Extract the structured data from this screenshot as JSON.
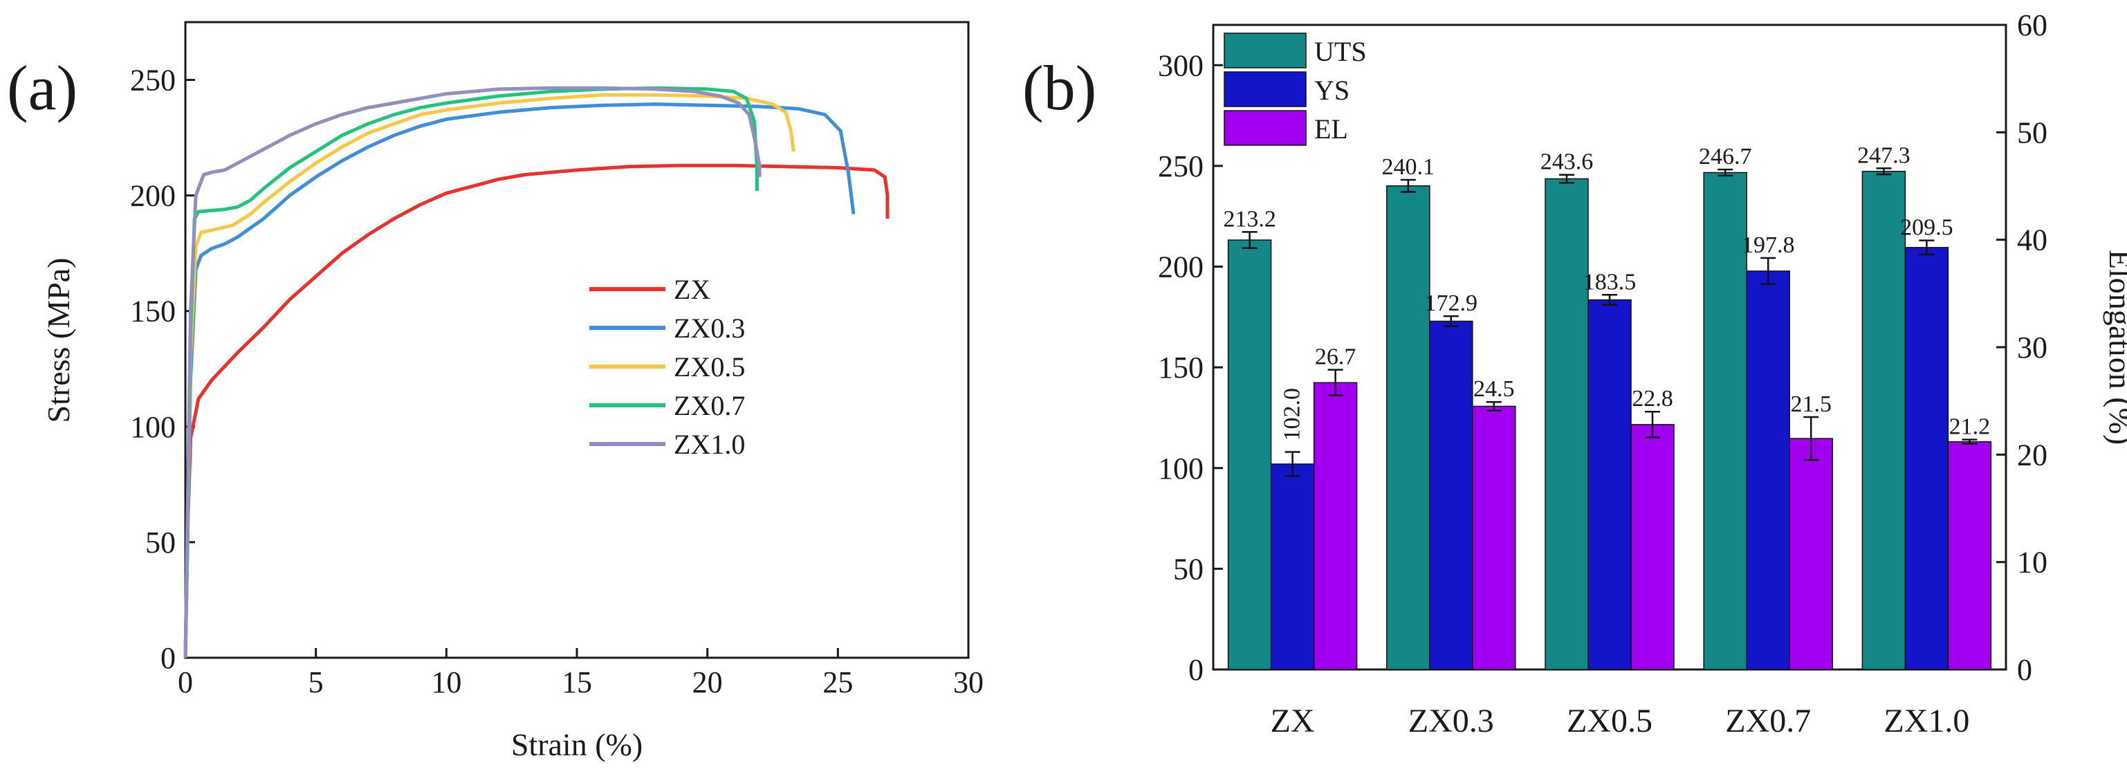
{
  "chart_data": [
    {
      "panel": "(a)",
      "type": "line",
      "xlabel": "Strain (%)",
      "ylabel": "Stress (MPa)",
      "xlim": [
        0,
        30
      ],
      "ylim": [
        0,
        275
      ],
      "xticks": [
        0,
        5,
        10,
        15,
        20,
        25,
        30
      ],
      "yticks": [
        0,
        50,
        100,
        150,
        200,
        250
      ],
      "legend": "center-right",
      "series": [
        {
          "name": "ZX",
          "color": "#e8322d",
          "points": [
            [
              0,
              0
            ],
            [
              0.1,
              60
            ],
            [
              0.2,
              95
            ],
            [
              0.5,
              112
            ],
            [
              1,
              120
            ],
            [
              2,
              132
            ],
            [
              3,
              143
            ],
            [
              4,
              155
            ],
            [
              5,
              165
            ],
            [
              6,
              175
            ],
            [
              7,
              183
            ],
            [
              8,
              190
            ],
            [
              9,
              196
            ],
            [
              10,
              201
            ],
            [
              11,
              204
            ],
            [
              12,
              207
            ],
            [
              13,
              209
            ],
            [
              15,
              211
            ],
            [
              17,
              212.5
            ],
            [
              19,
              213
            ],
            [
              21,
              213
            ],
            [
              23,
              212.5
            ],
            [
              25,
              212
            ],
            [
              26.4,
              211
            ],
            [
              26.8,
              208
            ],
            [
              26.9,
              200
            ],
            [
              26.9,
              190
            ]
          ]
        },
        {
          "name": "ZX0.3",
          "color": "#3f8fd8",
          "points": [
            [
              0,
              0
            ],
            [
              0.2,
              120
            ],
            [
              0.4,
              168
            ],
            [
              0.6,
              174
            ],
            [
              1,
              177
            ],
            [
              1.5,
              179
            ],
            [
              2,
              182
            ],
            [
              3,
              190
            ],
            [
              4,
              200
            ],
            [
              5,
              208
            ],
            [
              6,
              215
            ],
            [
              7,
              221
            ],
            [
              8,
              226
            ],
            [
              9,
              230
            ],
            [
              10,
              233
            ],
            [
              12,
              236
            ],
            [
              14,
              238
            ],
            [
              16,
              239
            ],
            [
              18,
              239.5
            ],
            [
              20,
              239
            ],
            [
              22,
              238.5
            ],
            [
              23.5,
              237.5
            ],
            [
              24.5,
              235
            ],
            [
              25.1,
              228
            ],
            [
              25.4,
              210
            ],
            [
              25.6,
              192
            ]
          ]
        },
        {
          "name": "ZX0.5",
          "color": "#f5c84a",
          "points": [
            [
              0,
              0
            ],
            [
              0.2,
              130
            ],
            [
              0.4,
              178
            ],
            [
              0.6,
              184
            ],
            [
              1,
              185
            ],
            [
              1.8,
              187
            ],
            [
              2.5,
              192
            ],
            [
              3,
              197
            ],
            [
              4,
              206
            ],
            [
              5,
              214
            ],
            [
              6,
              221
            ],
            [
              7,
              227
            ],
            [
              8,
              231
            ],
            [
              9,
              235
            ],
            [
              10,
              237
            ],
            [
              12,
              240
            ],
            [
              14,
              242
            ],
            [
              16,
              243.5
            ],
            [
              18,
              243.5
            ],
            [
              20,
              243
            ],
            [
              21.5,
              242
            ],
            [
              22.5,
              239.5
            ],
            [
              23,
              236
            ],
            [
              23.2,
              228
            ],
            [
              23.3,
              219
            ]
          ]
        },
        {
          "name": "ZX0.7",
          "color": "#25c27d",
          "points": [
            [
              0,
              0
            ],
            [
              0.2,
              140
            ],
            [
              0.35,
              190
            ],
            [
              0.5,
              193
            ],
            [
              1,
              193.5
            ],
            [
              1.5,
              194
            ],
            [
              2,
              195
            ],
            [
              2.5,
              198
            ],
            [
              3,
              203
            ],
            [
              4,
              212
            ],
            [
              5,
              219
            ],
            [
              6,
              226
            ],
            [
              7,
              231
            ],
            [
              8,
              235
            ],
            [
              9,
              238
            ],
            [
              10,
              240
            ],
            [
              12,
              243
            ],
            [
              14,
              245
            ],
            [
              16,
              246
            ],
            [
              18,
              246.5
            ],
            [
              20,
              246
            ],
            [
              21,
              245
            ],
            [
              21.5,
              242
            ],
            [
              21.8,
              232
            ],
            [
              21.9,
              212
            ],
            [
              21.9,
              202
            ]
          ]
        },
        {
          "name": "ZX1.0",
          "color": "#8f8fc0",
          "points": [
            [
              0,
              0
            ],
            [
              0.2,
              150
            ],
            [
              0.4,
              200
            ],
            [
              0.7,
              209
            ],
            [
              1,
              210
            ],
            [
              1.5,
              211
            ],
            [
              2,
              214
            ],
            [
              3,
              220
            ],
            [
              4,
              226
            ],
            [
              5,
              231
            ],
            [
              6,
              235
            ],
            [
              7,
              238
            ],
            [
              8,
              240
            ],
            [
              9,
              242
            ],
            [
              10,
              244
            ],
            [
              12,
              246
            ],
            [
              14,
              246.5
            ],
            [
              16,
              246.5
            ],
            [
              18,
              246
            ],
            [
              19.5,
              245
            ],
            [
              20.5,
              243
            ],
            [
              21.2,
              240
            ],
            [
              21.6,
              235
            ],
            [
              21.8,
              225
            ],
            [
              22,
              213
            ],
            [
              22,
              208
            ]
          ]
        }
      ]
    },
    {
      "panel": "(b)",
      "type": "bar",
      "categories": [
        "ZX",
        "ZX0.3",
        "ZX0.5",
        "ZX0.7",
        "ZX1.0"
      ],
      "ylabel": "",
      "y2label": "Elongation (%)",
      "ylim": [
        0,
        320
      ],
      "y2lim": [
        0,
        60
      ],
      "yticks": [
        0,
        50,
        100,
        150,
        200,
        250,
        300
      ],
      "y2ticks": [
        0,
        10,
        20,
        30,
        40,
        50,
        60
      ],
      "legend": "top-left",
      "series": [
        {
          "name": "UTS",
          "axis": "left",
          "color": "#138886",
          "values": [
            213.2,
            240.1,
            243.6,
            246.7,
            247.3
          ],
          "errors": [
            4,
            3,
            2,
            1.5,
            1.5
          ],
          "labels": [
            "213.2",
            "240.1",
            "243.6",
            "246.7",
            "247.3"
          ]
        },
        {
          "name": "YS",
          "axis": "left",
          "color": "#1414c8",
          "values": [
            102.0,
            172.9,
            183.5,
            197.8,
            209.5
          ],
          "errors": [
            6,
            2.5,
            2.5,
            6.5,
            3.5
          ],
          "labels": [
            "102.0",
            "172.9",
            "183.5",
            "197.8",
            "209.5"
          ]
        },
        {
          "name": "EL",
          "axis": "right",
          "color": "#a100f0",
          "values": [
            26.7,
            24.5,
            22.8,
            21.5,
            21.2
          ],
          "errors": [
            1.2,
            0.4,
            1.2,
            2.0,
            0.2
          ],
          "labels": [
            "26.7",
            "24.5",
            "22.8",
            "21.5",
            "21.2"
          ]
        }
      ]
    }
  ],
  "panel_labels": {
    "a": "(a)",
    "b": "(b)"
  }
}
